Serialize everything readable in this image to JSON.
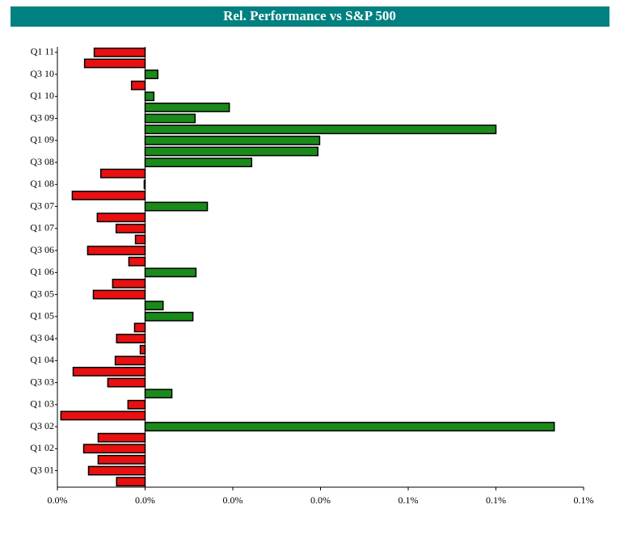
{
  "chart_data": {
    "type": "barh",
    "title": "Rel. Performance vs S&P 500",
    "categories": [
      null,
      "Q3 01",
      null,
      "Q1 02",
      null,
      "Q3 02",
      null,
      "Q1 03",
      null,
      "Q3 03",
      null,
      "Q1 04",
      null,
      "Q3 04",
      null,
      "Q1 05",
      null,
      "Q3 05",
      null,
      "Q1 06",
      null,
      "Q3 06",
      null,
      "Q1 07",
      null,
      "Q3 07",
      null,
      "Q1 08",
      null,
      "Q3 08",
      null,
      "Q1 09",
      null,
      "Q3 09",
      null,
      "Q1 10",
      null,
      "Q3 10",
      null,
      "Q1 11"
    ],
    "values": [
      -0.0065,
      -0.0129,
      -0.0107,
      -0.014,
      -0.0107,
      0.0933,
      -0.0192,
      -0.0039,
      0.0061,
      -0.0085,
      -0.0164,
      -0.0068,
      -0.0011,
      -0.0065,
      -0.0024,
      0.0109,
      0.0041,
      -0.0118,
      -0.0074,
      0.0116,
      -0.0037,
      -0.0131,
      -0.0022,
      -0.0066,
      -0.0109,
      0.0142,
      -0.0166,
      -0.0002,
      -0.0101,
      0.0243,
      0.0394,
      0.0398,
      0.08,
      0.0114,
      0.0192,
      0.002,
      -0.0031,
      0.0029,
      -0.0138,
      -0.0116
    ],
    "positive_color": "#1a8a1a",
    "negative_color": "#e81010",
    "xlim": [
      -0.02,
      0.1
    ],
    "xticks": [
      {
        "value": -0.02,
        "label": "0.0%"
      },
      {
        "value": 0,
        "label": "0.0%"
      },
      {
        "value": 0.02,
        "label": "0.0%"
      },
      {
        "value": 0.04,
        "label": "0.0%"
      },
      {
        "value": 0.06,
        "label": "0.1%"
      },
      {
        "value": 0.08,
        "label": "0.1%"
      },
      {
        "value": 0.1,
        "label": "0.1%"
      }
    ],
    "grid": false
  }
}
